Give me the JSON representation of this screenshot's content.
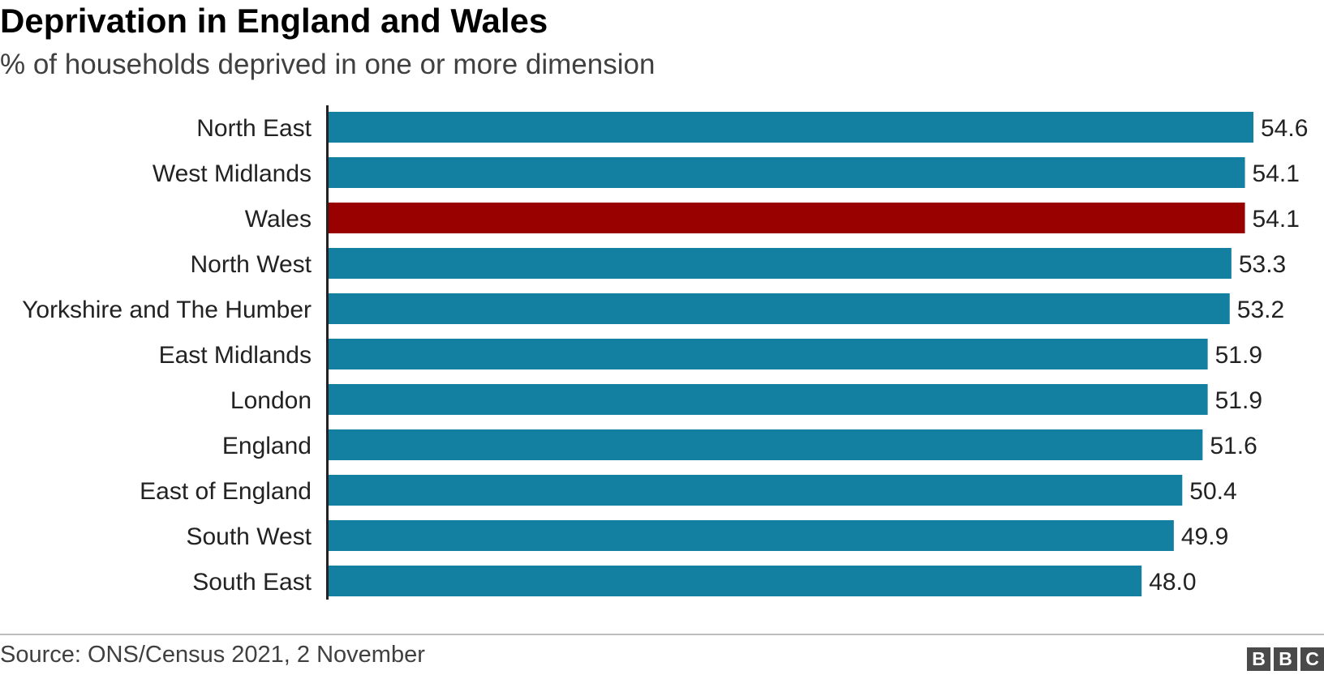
{
  "header": {
    "title": "Deprivation in England and Wales",
    "subtitle": "% of households deprived in one or more dimension"
  },
  "footer": {
    "source": "Source: ONS/Census 2021, 2 November",
    "logo": [
      "B",
      "B",
      "C"
    ]
  },
  "colors": {
    "default_bar": "#1380A1",
    "highlight_bar": "#990000",
    "axis": "#222222"
  },
  "chart_data": {
    "type": "bar",
    "orientation": "horizontal",
    "categories": [
      "North East",
      "West Midlands",
      "Wales",
      "North West",
      "Yorkshire and The Humber",
      "East Midlands",
      "London",
      "England",
      "East of England",
      "South West",
      "South East"
    ],
    "values": [
      54.6,
      54.1,
      54.1,
      53.3,
      53.2,
      51.9,
      51.9,
      51.6,
      50.4,
      49.9,
      48.0
    ],
    "value_labels": [
      "54.6",
      "54.1",
      "54.1",
      "53.3",
      "53.2",
      "51.9",
      "51.9",
      "51.6",
      "50.4",
      "49.9",
      "48.0"
    ],
    "highlight": "Wales",
    "xlim": [
      0,
      54.6
    ],
    "grid": false,
    "legend": "none"
  }
}
